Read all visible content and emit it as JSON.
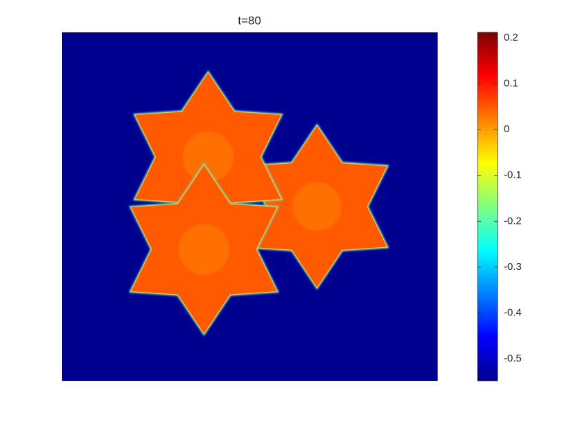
{
  "chart_data": {
    "type": "heatmap",
    "title": "t=80",
    "colormap": "jet",
    "clim": [
      -0.548,
      0.212
    ],
    "colorbar_ticks": [
      0.2,
      0.1,
      0,
      -0.1,
      -0.2,
      -0.3,
      -0.4,
      -0.5
    ]
  }
}
